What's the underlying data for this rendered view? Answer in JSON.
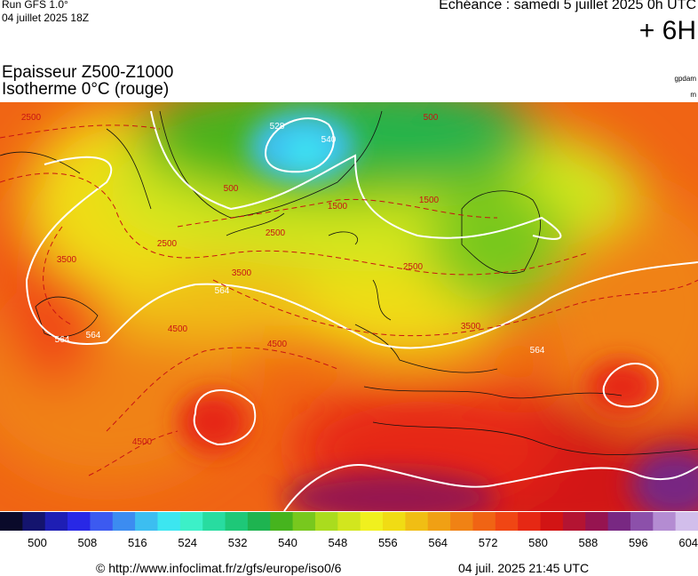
{
  "header": {
    "run": "Run GFS 1.0°",
    "run_date": "04 juillet 2025 18Z",
    "valid": "Echéance : samedi 5 juillet 2025 0h UTC",
    "lead": "+ 6H",
    "title": "Epaisseur Z500-Z1000",
    "subtitle": "Isotherme 0°C (rouge)",
    "unit_1": "gpdam",
    "unit_2": "m"
  },
  "contour_labels": [
    "528",
    "540",
    "564",
    "564",
    "564",
    "564",
    "2500",
    "3500",
    "4500",
    "1500",
    "500",
    "2500",
    "3500",
    "4500",
    "4500",
    "2500",
    "1500",
    "500",
    "3500",
    "2500"
  ],
  "colorbar": {
    "labels": [
      500,
      508,
      516,
      524,
      532,
      540,
      548,
      556,
      564,
      572,
      580,
      588,
      596,
      604
    ],
    "colors": [
      "#0a0a2a",
      "#14146e",
      "#1e1eb4",
      "#2828e6",
      "#3c5af0",
      "#3c8cf0",
      "#3cbef0",
      "#3ce6f0",
      "#3cf0c8",
      "#28dca0",
      "#1ec878",
      "#1eb450",
      "#46b41e",
      "#78c81e",
      "#aadc1e",
      "#d2e61e",
      "#f0f01e",
      "#f0dc14",
      "#f0be14",
      "#f0a014",
      "#f08214",
      "#f06414",
      "#f04614",
      "#e62814",
      "#d21414",
      "#b41432",
      "#961450",
      "#782882",
      "#8c50aa",
      "#b48cd2",
      "#d2beeb"
    ]
  },
  "footer": {
    "source": "© http://www.infoclimat.fr/z/gfs/europe/iso0/6",
    "date": "04 juil. 2025 21:45 UTC"
  }
}
